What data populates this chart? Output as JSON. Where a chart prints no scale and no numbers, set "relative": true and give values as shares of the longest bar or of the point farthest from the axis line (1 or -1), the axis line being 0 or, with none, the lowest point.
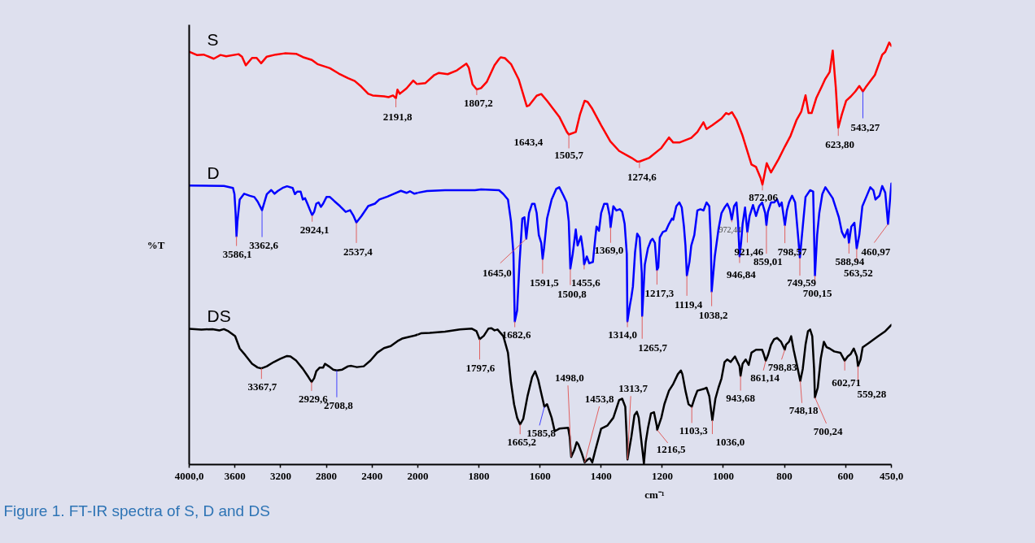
{
  "chart_data": [
    {
      "type": "line",
      "title": "Figure 1. FT-IR spectra of S, D and DS",
      "ylabel": "%T",
      "relative": true,
      "xlim": [
        4000,
        2000
      ],
      "xticks": [
        {
          "value": 4000,
          "label": "4000,0"
        },
        3600,
        3200,
        2800,
        2400,
        2000
      ],
      "series": [
        {
          "name": "S",
          "color": "#ff0000",
          "x": [
            4000,
            3933,
            3874,
            3785,
            3726,
            3676,
            3568,
            3538,
            3505,
            3450,
            3410,
            3371,
            3321,
            3243,
            3164,
            3065,
            3006,
            2927,
            2878,
            2769,
            2691,
            2611,
            2552,
            2493,
            2434,
            2395,
            2296,
            2256,
            2217,
            2191.8,
            2178,
            2158,
            2099,
            2040,
            2010,
            2000
          ],
          "values": [
            1.0,
            0.992,
            0.993,
            0.983,
            0.992,
            0.989,
            0.994,
            0.988,
            0.967,
            0.985,
            0.985,
            0.972,
            0.988,
            0.993,
            0.996,
            0.995,
            0.987,
            0.98,
            0.97,
            0.96,
            0.947,
            0.936,
            0.929,
            0.915,
            0.898,
            0.894,
            0.892,
            0.89,
            0.894,
            0.887,
            0.908,
            0.898,
            0.911,
            0.93,
            0.922,
            0.922
          ]
        },
        {
          "name": "D",
          "color": "#0000ff",
          "x": [
            4000,
            3696,
            3617,
            3604,
            3594,
            3586.1,
            3578,
            3558,
            3519,
            3469,
            3430,
            3401,
            3362.6,
            3321,
            3282,
            3253,
            3223,
            3183,
            3144,
            3095,
            3075,
            3055,
            3025,
            3006,
            2986,
            2966,
            2947,
            2924.1,
            2907,
            2888,
            2868,
            2848,
            2828,
            2799,
            2769,
            2730,
            2681,
            2631,
            2592,
            2562,
            2537.4,
            2493,
            2434,
            2375,
            2336,
            2266,
            2217,
            2148,
            2099,
            2069,
            2030,
            2000
          ],
          "values": [
            0.676,
            0.675,
            0.67,
            0.655,
            0.609,
            0.553,
            0.589,
            0.642,
            0.656,
            0.651,
            0.648,
            0.637,
            0.616,
            0.655,
            0.665,
            0.656,
            0.663,
            0.67,
            0.674,
            0.67,
            0.655,
            0.661,
            0.661,
            0.642,
            0.645,
            0.632,
            0.619,
            0.604,
            0.612,
            0.632,
            0.635,
            0.624,
            0.632,
            0.648,
            0.648,
            0.638,
            0.626,
            0.612,
            0.616,
            0.602,
            0.586,
            0.602,
            0.626,
            0.632,
            0.642,
            0.649,
            0.655,
            0.663,
            0.658,
            0.662,
            0.656,
            0.658
          ]
        },
        {
          "name": "DS",
          "color": "#000000",
          "x": [
            4000,
            3893,
            3795,
            3736,
            3696,
            3657,
            3598,
            3558,
            3509,
            3450,
            3401,
            3367.7,
            3321,
            3262,
            3203,
            3144,
            3114,
            3065,
            3006,
            2957,
            2929.6,
            2907,
            2888,
            2858,
            2828,
            2812,
            2779,
            2740,
            2708.8,
            2661,
            2611,
            2582,
            2533,
            2473,
            2414,
            2355,
            2296,
            2237,
            2178,
            2138,
            2079,
            2020,
            2000
          ],
          "values": [
            0.329,
            0.327,
            0.328,
            0.325,
            0.328,
            0.323,
            0.311,
            0.281,
            0.265,
            0.244,
            0.235,
            0.233,
            0.238,
            0.248,
            0.256,
            0.263,
            0.262,
            0.252,
            0.232,
            0.212,
            0.2,
            0.209,
            0.226,
            0.235,
            0.235,
            0.244,
            0.238,
            0.23,
            0.228,
            0.23,
            0.238,
            0.239,
            0.236,
            0.238,
            0.252,
            0.271,
            0.282,
            0.287,
            0.299,
            0.305,
            0.309,
            0.313,
            0.315
          ]
        }
      ],
      "annotations": [
        {
          "text": "2191,8",
          "x": 2191.8,
          "y": 0.887
        },
        {
          "text": "3586,1",
          "x": 3586.1,
          "y": 0.553
        },
        {
          "text": "3362,6",
          "x": 3362.6,
          "y": 0.616
        },
        {
          "text": "2924,1",
          "x": 2924.1,
          "y": 0.604
        },
        {
          "text": "2537,4",
          "x": 2537.4,
          "y": 0.586
        },
        {
          "text": "3367,7",
          "x": 3367.7,
          "y": 0.233
        },
        {
          "text": "2929,6",
          "x": 2929.6,
          "y": 0.2
        },
        {
          "text": "2708,8",
          "x": 2708.8,
          "y": 0.228
        }
      ]
    },
    {
      "type": "line",
      "xlabel": "cm⁻¹",
      "relative": true,
      "xlim": [
        2000,
        450
      ],
      "xticks": [
        1800,
        1600,
        1400,
        1200,
        1000,
        800,
        600,
        {
          "value": 450,
          "label": "450,0"
        }
      ],
      "series": [
        {
          "color": "#ff0000",
          "x": [
            2000,
            1975,
            1946,
            1931,
            1902,
            1872,
            1841,
            1833,
            1821,
            1807.2,
            1793,
            1774,
            1749,
            1734,
            1729,
            1715,
            1695,
            1670,
            1643.4,
            1636,
            1611,
            1596,
            1577,
            1537,
            1512,
            1505.7,
            1483,
            1469,
            1454,
            1444,
            1429,
            1400,
            1370,
            1341,
            1301,
            1282,
            1274.6,
            1242,
            1203,
            1178,
            1164,
            1144,
            1105,
            1085,
            1065,
            1055,
            1036,
            1006,
            991,
            982,
            972,
            957,
            937,
            908,
            893,
            878,
            872.06,
            858,
            844,
            819,
            799,
            780,
            760,
            745,
            731,
            721,
            711,
            696,
            677,
            667,
            652,
            642,
            632,
            623.8,
            612,
            598,
            583,
            568,
            555,
            543.27,
            534,
            504,
            480,
            470,
            457,
            450
          ],
          "values": [
            0.902,
            0.904,
            0.923,
            0.928,
            0.925,
            0.934,
            0.95,
            0.94,
            0.901,
            0.889,
            0.892,
            0.907,
            0.946,
            0.961,
            0.965,
            0.963,
            0.949,
            0.913,
            0.849,
            0.851,
            0.874,
            0.878,
            0.862,
            0.824,
            0.788,
            0.782,
            0.788,
            0.83,
            0.862,
            0.859,
            0.843,
            0.804,
            0.766,
            0.743,
            0.727,
            0.718,
            0.718,
            0.727,
            0.75,
            0.775,
            0.763,
            0.763,
            0.774,
            0.788,
            0.811,
            0.795,
            0.804,
            0.82,
            0.833,
            0.83,
            0.835,
            0.817,
            0.779,
            0.711,
            0.705,
            0.679,
            0.663,
            0.714,
            0.692,
            0.724,
            0.753,
            0.779,
            0.817,
            0.836,
            0.875,
            0.833,
            0.833,
            0.868,
            0.897,
            0.913,
            0.93,
            0.981,
            0.894,
            0.798,
            0.83,
            0.862,
            0.872,
            0.884,
            0.897,
            0.884,
            0.894,
            0.923,
            0.971,
            0.978,
            1.0,
            0.992
          ]
        },
        {
          "color": "#0000ff",
          "x": [
            2000,
            1970,
            1911,
            1813,
            1793,
            1734,
            1720,
            1705,
            1695,
            1687,
            1682.6,
            1675,
            1667,
            1658,
            1651,
            1645.0,
            1636,
            1626,
            1618,
            1611,
            1604,
            1596,
            1591.5,
            1587,
            1577,
            1562,
            1547,
            1537,
            1523,
            1513,
            1506,
            1500.8,
            1493,
            1483,
            1477,
            1466,
            1459,
            1455.6,
            1447,
            1439,
            1427,
            1419,
            1415,
            1407,
            1400,
            1390,
            1380,
            1372,
            1369.0,
            1360,
            1350,
            1339,
            1331,
            1323,
            1316,
            1314.0,
            1306,
            1301,
            1296,
            1289,
            1282,
            1274,
            1267,
            1265.7,
            1257,
            1247,
            1237,
            1232,
            1224,
            1217.3,
            1213,
            1208,
            1198,
            1188,
            1178,
            1168,
            1164,
            1154,
            1144,
            1136,
            1129,
            1124,
            1119.4,
            1111,
            1105,
            1095,
            1085,
            1075,
            1065,
            1055,
            1046,
            1041,
            1038.2,
            1028,
            1016,
            1006,
            996,
            987,
            979,
            972.44,
            965,
            957,
            952,
            946.84,
            942,
            937,
            929,
            921.46,
            914,
            903,
            893,
            883,
            873,
            863,
            859.01,
            854,
            844,
            834,
            824,
            816,
            809,
            798.57,
            792,
            785,
            775,
            765,
            755,
            749.59,
            740,
            731,
            716,
            706,
            700.15,
            693,
            686,
            676,
            666,
            654,
            642,
            622,
            612,
            603,
            593,
            588.94,
            581,
            571,
            563.52,
            555,
            545,
            534,
            519,
            509,
            502,
            489,
            480,
            470,
            460.97,
            450
          ],
          "values": [
            0.644,
            0.648,
            0.65,
            0.65,
            0.652,
            0.65,
            0.641,
            0.628,
            0.576,
            0.499,
            0.339,
            0.365,
            0.48,
            0.583,
            0.586,
            0.535,
            0.596,
            0.618,
            0.618,
            0.596,
            0.544,
            0.525,
            0.487,
            0.512,
            0.583,
            0.628,
            0.653,
            0.657,
            0.637,
            0.621,
            0.576,
            0.464,
            0.499,
            0.557,
            0.519,
            0.541,
            0.506,
            0.474,
            0.493,
            0.477,
            0.48,
            0.538,
            0.564,
            0.554,
            0.596,
            0.618,
            0.618,
            0.589,
            0.562,
            0.612,
            0.602,
            0.605,
            0.599,
            0.57,
            0.499,
            0.339,
            0.377,
            0.397,
            0.422,
            0.503,
            0.547,
            0.538,
            0.454,
            0.352,
            0.474,
            0.512,
            0.531,
            0.535,
            0.525,
            0.461,
            0.467,
            0.538,
            0.551,
            0.554,
            0.57,
            0.583,
            0.58,
            0.612,
            0.621,
            0.609,
            0.564,
            0.519,
            0.448,
            0.48,
            0.519,
            0.544,
            0.602,
            0.605,
            0.602,
            0.621,
            0.612,
            0.531,
            0.41,
            0.493,
            0.557,
            0.596,
            0.609,
            0.618,
            0.605,
            0.58,
            0.612,
            0.621,
            0.576,
            0.493,
            0.525,
            0.57,
            0.609,
            0.551,
            0.589,
            0.615,
            0.589,
            0.612,
            0.621,
            0.596,
            0.567,
            0.599,
            0.621,
            0.621,
            0.628,
            0.612,
            0.621,
            0.567,
            0.602,
            0.621,
            0.637,
            0.621,
            0.538,
            0.49,
            0.564,
            0.634,
            0.65,
            0.647,
            0.448,
            0.544,
            0.596,
            0.641,
            0.657,
            0.644,
            0.631,
            0.586,
            0.551,
            0.538,
            0.557,
            0.525,
            0.564,
            0.573,
            0.512,
            0.544,
            0.612,
            0.631,
            0.657,
            0.65,
            0.628,
            0.637,
            0.66,
            0.644,
            0.57,
            0.666
          ]
        },
        {
          "color": "#000000",
          "x": [
            2000,
            1990,
            1961,
            1911,
            1862,
            1823,
            1808,
            1797.6,
            1784,
            1769,
            1759,
            1749,
            1739,
            1720,
            1705,
            1695,
            1685,
            1675,
            1665.2,
            1655,
            1641,
            1626,
            1616,
            1606,
            1596,
            1585.8,
            1577,
            1562,
            1552,
            1537,
            1508,
            1503,
            1498.0,
            1488,
            1480,
            1474,
            1464,
            1453.8,
            1444,
            1437,
            1429,
            1419,
            1400,
            1380,
            1360,
            1341,
            1331,
            1321,
            1316,
            1313.7,
            1301,
            1291,
            1283,
            1277,
            1270,
            1264,
            1260,
            1254,
            1247,
            1237,
            1227,
            1218,
            1216.5,
            1203,
            1193,
            1178,
            1164,
            1149,
            1139,
            1134,
            1124,
            1114,
            1103.3,
            1095,
            1085,
            1065,
            1055,
            1046,
            1036.0,
            1026,
            1016,
            1006,
            996,
            987,
            976,
            962,
            947,
            943.68,
            937,
            927,
            917,
            908,
            893,
            873,
            868,
            861.14,
            854,
            844,
            834,
            824,
            811,
            798.83,
            795,
            785,
            778,
            770,
            760,
            748.18,
            740,
            731,
            723,
            716,
            709,
            703,
            700.24,
            691,
            681,
            671,
            662,
            652,
            637,
            617,
            602.71,
            593,
            583,
            573,
            563,
            559.28,
            551,
            544,
            524,
            494,
            470,
            450
          ],
          "values": [
            0.308,
            0.311,
            0.312,
            0.315,
            0.32,
            0.322,
            0.316,
            0.297,
            0.305,
            0.322,
            0.323,
            0.318,
            0.32,
            0.304,
            0.265,
            0.194,
            0.143,
            0.111,
            0.095,
            0.108,
            0.162,
            0.207,
            0.221,
            0.201,
            0.169,
            0.137,
            0.143,
            0.111,
            0.079,
            0.085,
            0.087,
            0.066,
            0.018,
            0.034,
            0.053,
            0.047,
            0.028,
            0.005,
            0.012,
            0.015,
            0.005,
            0.034,
            0.085,
            0.092,
            0.111,
            0.153,
            0.156,
            0.137,
            0.06,
            0.012,
            0.066,
            0.117,
            0.125,
            0.111,
            0.066,
            0.028,
            0.002,
            0.053,
            0.085,
            0.121,
            0.124,
            0.092,
            0.082,
            0.111,
            0.143,
            0.175,
            0.191,
            0.214,
            0.223,
            0.214,
            0.175,
            0.143,
            0.137,
            0.156,
            0.175,
            0.179,
            0.182,
            0.162,
            0.105,
            0.156,
            0.182,
            0.204,
            0.243,
            0.249,
            0.243,
            0.256,
            0.233,
            0.21,
            0.239,
            0.249,
            0.236,
            0.265,
            0.272,
            0.272,
            0.262,
            0.246,
            0.259,
            0.284,
            0.297,
            0.3,
            0.291,
            0.272,
            0.284,
            0.291,
            0.304,
            0.272,
            0.239,
            0.198,
            0.227,
            0.284,
            0.316,
            0.32,
            0.304,
            0.227,
            0.159,
            0.182,
            0.252,
            0.291,
            0.278,
            0.275,
            0.268,
            0.265,
            0.246,
            0.256,
            0.262,
            0.275,
            0.256,
            0.233,
            0.249,
            0.278,
            0.288,
            0.304,
            0.316,
            0.331
          ]
        }
      ],
      "annotations": [
        {
          "text": "1807,2",
          "x": 1807.2,
          "y": 0.889
        },
        {
          "text": "1643,4",
          "x": 1643.4,
          "y": 0.849
        },
        {
          "text": "1505,7",
          "x": 1505.7,
          "y": 0.782
        },
        {
          "text": "1274,6",
          "x": 1274.6,
          "y": 0.718
        },
        {
          "text": "872,06",
          "x": 872.06,
          "y": 0.663
        },
        {
          "text": "623,80",
          "x": 623.8,
          "y": 0.798
        },
        {
          "text": "543,27",
          "x": 543.27,
          "y": 0.884
        },
        {
          "text": "1682,6",
          "x": 1682.6,
          "y": 0.339
        },
        {
          "text": "1645,0",
          "x": 1645.0,
          "y": 0.535
        },
        {
          "text": "1591,5",
          "x": 1591.5,
          "y": 0.487
        },
        {
          "text": "1500,8",
          "x": 1500.8,
          "y": 0.464
        },
        {
          "text": "1455,6",
          "x": 1455.6,
          "y": 0.474
        },
        {
          "text": "1369,0",
          "x": 1369.0,
          "y": 0.562
        },
        {
          "text": "1314,0",
          "x": 1314.0,
          "y": 0.339
        },
        {
          "text": "1265,7",
          "x": 1265.7,
          "y": 0.352
        },
        {
          "text": "1217,3",
          "x": 1217.3,
          "y": 0.461
        },
        {
          "text": "1119,4",
          "x": 1119.4,
          "y": 0.448
        },
        {
          "text": "1038,2",
          "x": 1038.2,
          "y": 0.41
        },
        {
          "text": "972,44",
          "x": 972.44,
          "y": 0.58
        },
        {
          "text": "946,84",
          "x": 946.84,
          "y": 0.493
        },
        {
          "text": "921,46",
          "x": 921.46,
          "y": 0.551
        },
        {
          "text": "859,01",
          "x": 859.01,
          "y": 0.567
        },
        {
          "text": "798,57",
          "x": 798.57,
          "y": 0.567
        },
        {
          "text": "749,59",
          "x": 749.59,
          "y": 0.49
        },
        {
          "text": "700,15",
          "x": 700.15,
          "y": 0.448
        },
        {
          "text": "588,94",
          "x": 588.94,
          "y": 0.525
        },
        {
          "text": "563,52",
          "x": 563.52,
          "y": 0.512
        },
        {
          "text": "460,97",
          "x": 460.97,
          "y": 0.57
        },
        {
          "text": "1797,6",
          "x": 1797.6,
          "y": 0.297
        },
        {
          "text": "1665,2",
          "x": 1665.2,
          "y": 0.095
        },
        {
          "text": "1585,8",
          "x": 1585.8,
          "y": 0.137
        },
        {
          "text": "1498,0",
          "x": 1498.0,
          "y": 0.018
        },
        {
          "text": "1453,8",
          "x": 1453.8,
          "y": 0.005
        },
        {
          "text": "1313,7",
          "x": 1313.7,
          "y": 0.012
        },
        {
          "text": "1216,5",
          "x": 1216.5,
          "y": 0.082
        },
        {
          "text": "1103,3",
          "x": 1103.3,
          "y": 0.137
        },
        {
          "text": "1036,0",
          "x": 1036.0,
          "y": 0.105
        },
        {
          "text": "943,68",
          "x": 943.68,
          "y": 0.21
        },
        {
          "text": "861,14",
          "x": 861.14,
          "y": 0.246
        },
        {
          "text": "798,83",
          "x": 798.83,
          "y": 0.272
        },
        {
          "text": "748,18",
          "x": 748.18,
          "y": 0.198
        },
        {
          "text": "700,24",
          "x": 700.24,
          "y": 0.159
        },
        {
          "text": "602,71",
          "x": 602.71,
          "y": 0.246
        },
        {
          "text": "559,28",
          "x": 559.28,
          "y": 0.233
        }
      ]
    }
  ]
}
